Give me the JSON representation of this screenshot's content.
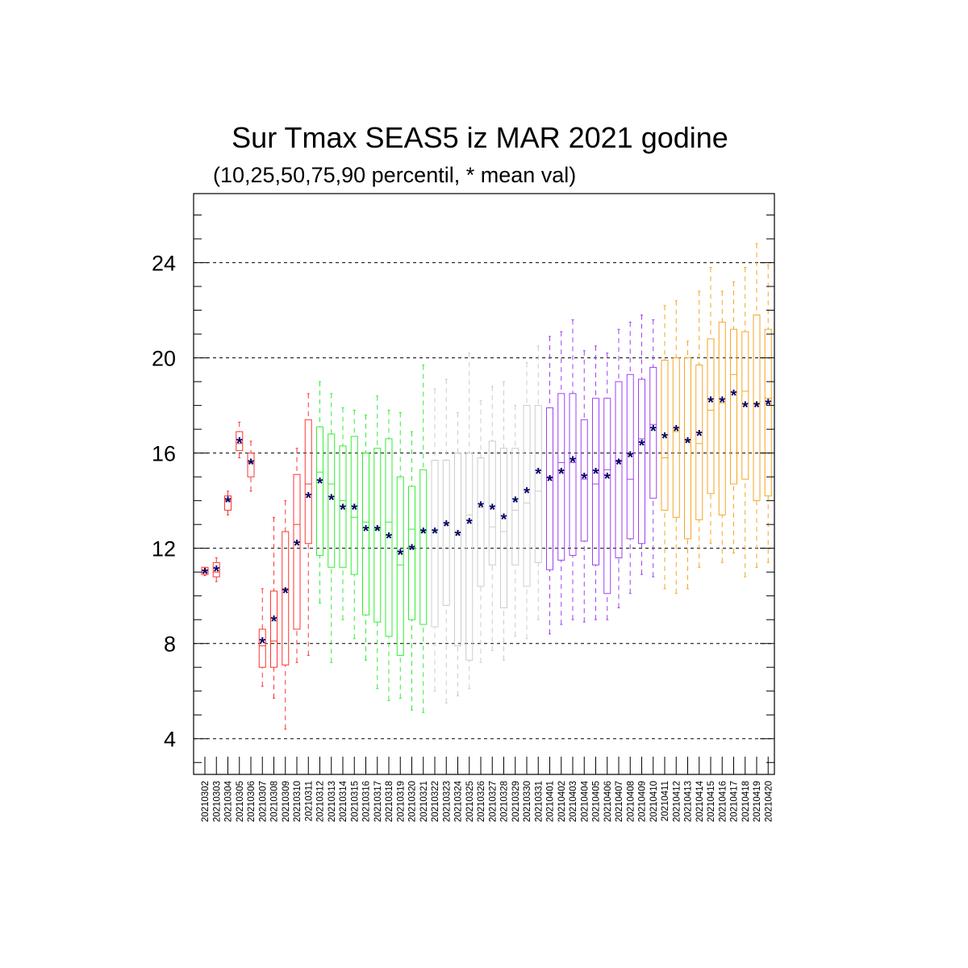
{
  "chart_data": {
    "type": "boxplot",
    "title": "Sur Tmax SEAS5 iz MAR 2021 godine",
    "subtitle": "(10,25,50,75,90 percentil, * mean val)",
    "xlabel": "",
    "ylabel": "",
    "ylim": [
      2.5,
      26.9
    ],
    "yticks": [
      4,
      8,
      12,
      16,
      20,
      24
    ],
    "ytick_labels": [
      "4",
      "8",
      "12",
      "16",
      "20",
      "24"
    ],
    "grid": "horizontal dashed at major ticks",
    "mean_marker": "*",
    "mean_color": "#000066",
    "categories": [
      "20210302",
      "20210303",
      "20210304",
      "20210305",
      "20210306",
      "20210307",
      "20210308",
      "20210309",
      "20210310",
      "20210311",
      "20210312",
      "20210313",
      "20210314",
      "20210315",
      "20210316",
      "20210317",
      "20210318",
      "20210319",
      "20210320",
      "20210321",
      "20210322",
      "20210323",
      "20210324",
      "20210325",
      "20210326",
      "20210327",
      "20210328",
      "20210329",
      "20210330",
      "20210331",
      "20210401",
      "20210402",
      "20210403",
      "20210404",
      "20210405",
      "20210406",
      "20210407",
      "20210408",
      "20210409",
      "20210410",
      "20210411",
      "20210412",
      "20210413",
      "20210414",
      "20210415",
      "20210416",
      "20210417",
      "20210418",
      "20210419",
      "20210420"
    ],
    "colors": [
      "#ff3333",
      "#ff3333",
      "#ff3333",
      "#ff3333",
      "#ff3333",
      "#ff3333",
      "#ff3333",
      "#ff3333",
      "#ff3333",
      "#ff3333",
      "#33ee33",
      "#33ee33",
      "#33ee33",
      "#33ee33",
      "#33ee33",
      "#33ee33",
      "#33ee33",
      "#33ee33",
      "#33ee33",
      "#33ee33",
      "#cccccc",
      "#cccccc",
      "#cccccc",
      "#cccccc",
      "#cccccc",
      "#cccccc",
      "#cccccc",
      "#cccccc",
      "#cccccc",
      "#cccccc",
      "#a040f0",
      "#a040f0",
      "#a040f0",
      "#a040f0",
      "#a040f0",
      "#a040f0",
      "#a040f0",
      "#a040f0",
      "#a040f0",
      "#a040f0",
      "#f5a623",
      "#f5a623",
      "#f5a623",
      "#f5a623",
      "#f5a623",
      "#f5a623",
      "#f5a623",
      "#f5a623",
      "#f5a623",
      "#f5a623"
    ],
    "p10": [
      10.85,
      10.6,
      13.4,
      15.8,
      14.4,
      6.2,
      5.7,
      4.4,
      7.2,
      7.5,
      9.7,
      7.2,
      9.0,
      8.2,
      7.3,
      6.1,
      5.6,
      5.7,
      5.2,
      5.1,
      6.0,
      5.5,
      5.8,
      6.1,
      7.2,
      7.7,
      7.3,
      8.3,
      8.2,
      9.0,
      8.4,
      8.8,
      9.0,
      8.9,
      9.0,
      9.0,
      9.5,
      10.1,
      10.9,
      10.8,
      10.3,
      10.1,
      10.3,
      11.2,
      12.2,
      11.4,
      11.8,
      10.8,
      11.2,
      11.4
    ],
    "p25": [
      10.9,
      10.8,
      13.6,
      16.1,
      15.0,
      7.0,
      7.0,
      7.1,
      8.6,
      12.2,
      11.7,
      11.2,
      11.2,
      10.9,
      9.2,
      8.9,
      8.3,
      7.5,
      9.0,
      8.8,
      8.7,
      9.6,
      7.9,
      7.3,
      10.4,
      11.3,
      9.5,
      11.3,
      10.4,
      11.4,
      11.1,
      11.5,
      11.7,
      12.3,
      11.3,
      10.1,
      11.6,
      12.4,
      12.2,
      14.1,
      13.6,
      13.3,
      12.4,
      13.2,
      14.3,
      13.4,
      14.7,
      14.9,
      14.0,
      14.2
    ],
    "p50": [
      11.0,
      11.0,
      14.0,
      16.4,
      15.6,
      7.9,
      8.1,
      10.3,
      13.0,
      14.7,
      15.2,
      14.7,
      14.0,
      13.3,
      13.1,
      12.8,
      13.1,
      11.3,
      12.8,
      12.7,
      12.7,
      13.0,
      12.6,
      13.4,
      13.7,
      12.9,
      12.7,
      13.6,
      13.9,
      14.4,
      15.0,
      15.6,
      15.6,
      14.9,
      14.7,
      15.3,
      15.7,
      14.9,
      16.6,
      17.2,
      15.8,
      16.9,
      16.5,
      16.4,
      17.8,
      18.1,
      19.3,
      18.6,
      18.1,
      18.3
    ],
    "p75": [
      11.2,
      11.4,
      14.2,
      16.9,
      16.0,
      8.6,
      10.2,
      12.7,
      15.1,
      17.4,
      17.1,
      16.8,
      16.3,
      16.7,
      16.0,
      16.2,
      16.6,
      15.0,
      14.6,
      15.3,
      15.7,
      15.7,
      16.0,
      16.0,
      15.8,
      16.5,
      16.2,
      16.2,
      18.0,
      18.0,
      17.9,
      18.5,
      18.5,
      17.4,
      18.3,
      18.3,
      19.0,
      19.3,
      19.1,
      19.6,
      19.9,
      20.0,
      20.0,
      19.7,
      20.8,
      21.5,
      21.2,
      21.1,
      21.8,
      21.2
    ],
    "p90": [
      11.1,
      11.6,
      14.4,
      17.3,
      16.5,
      10.3,
      13.3,
      14.0,
      16.2,
      18.5,
      19.0,
      18.5,
      17.9,
      17.8,
      17.6,
      18.4,
      17.8,
      17.7,
      16.9,
      19.7,
      18.7,
      19.1,
      17.7,
      20.2,
      18.2,
      18.8,
      19.0,
      18.0,
      19.8,
      20.5,
      20.9,
      21.1,
      21.6,
      20.3,
      20.5,
      20.2,
      21.2,
      21.5,
      21.8,
      21.6,
      22.2,
      22.4,
      20.7,
      22.8,
      23.8,
      22.8,
      23.2,
      23.8,
      24.8,
      23.9
    ],
    "mean": [
      11.0,
      11.1,
      14.0,
      16.5,
      15.6,
      8.1,
      9.0,
      10.2,
      12.2,
      14.2,
      14.8,
      14.1,
      13.7,
      13.7,
      12.8,
      12.8,
      12.5,
      11.8,
      12.0,
      12.7,
      12.7,
      13.0,
      12.6,
      13.1,
      13.8,
      13.7,
      13.3,
      14.0,
      14.4,
      15.2,
      14.9,
      15.2,
      15.7,
      15.0,
      15.2,
      15.0,
      15.6,
      15.9,
      16.4,
      17.0,
      16.7,
      17.0,
      16.5,
      16.8,
      18.2,
      18.2,
      18.5,
      18.0,
      18.0,
      18.1
    ]
  }
}
